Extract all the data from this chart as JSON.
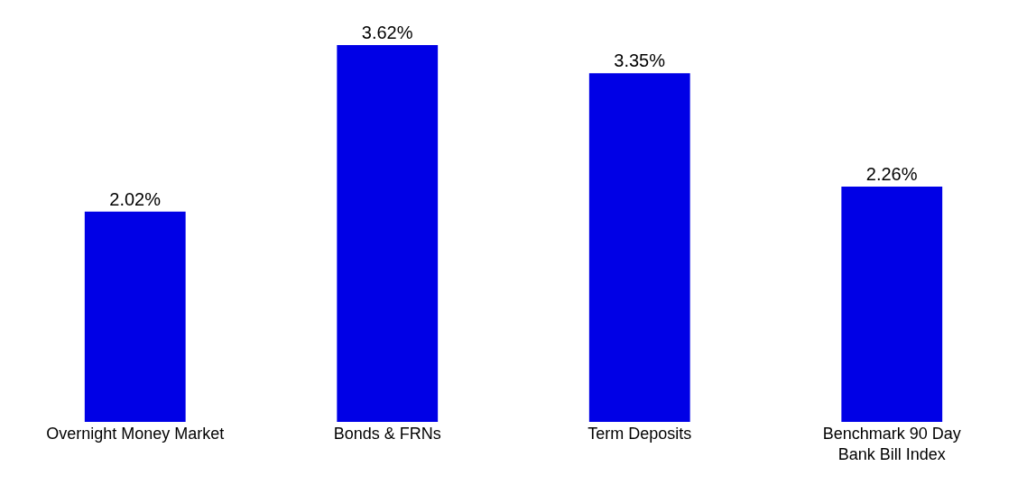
{
  "chart_data": {
    "type": "bar",
    "categories": [
      "Overnight Money Market",
      "Bonds & FRNs",
      "Term Deposits",
      "Benchmark 90 Day Bank Bill Index"
    ],
    "values": [
      2.02,
      3.62,
      3.35,
      2.26
    ],
    "value_labels": [
      "2.02%",
      "3.62%",
      "3.35%",
      "2.26%"
    ],
    "color": "#0000e6"
  }
}
